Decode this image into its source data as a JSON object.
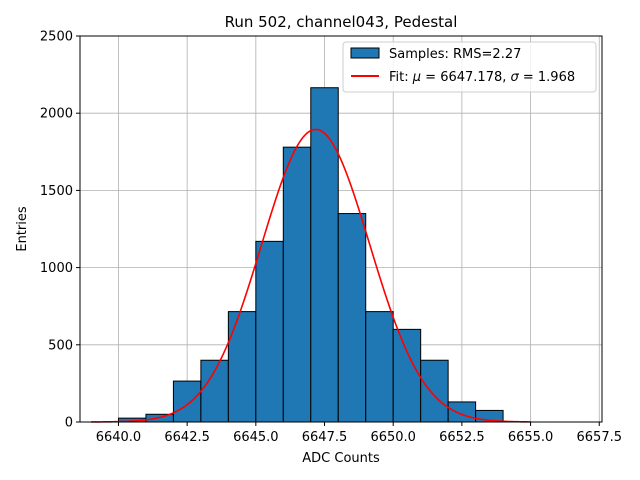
{
  "chart_data": {
    "type": "bar",
    "title": "Run 502, channel043, Pedestal",
    "xlabel": "ADC Counts",
    "ylabel": "Entries",
    "xlim": [
      6638.6,
      6657.6
    ],
    "ylim": [
      0,
      2500
    ],
    "xticks": [
      "6640.0",
      "6642.5",
      "6645.0",
      "6647.5",
      "6650.0",
      "6652.5",
      "6655.0",
      "6657.5"
    ],
    "yticks": [
      "0",
      "500",
      "1000",
      "1500",
      "2000",
      "2500"
    ],
    "grid": true,
    "legend_position": "top-right",
    "histogram": {
      "name": "Samples: RMS=2.27",
      "color": "#1f77b4",
      "edge_color": "#000000",
      "bins": [
        {
          "x0": 6640,
          "x1": 6641,
          "count": 25
        },
        {
          "x0": 6641,
          "x1": 6642,
          "count": 50
        },
        {
          "x0": 6642,
          "x1": 6643,
          "count": 265
        },
        {
          "x0": 6643,
          "x1": 6644,
          "count": 400
        },
        {
          "x0": 6644,
          "x1": 6645,
          "count": 715
        },
        {
          "x0": 6645,
          "x1": 6646,
          "count": 1170
        },
        {
          "x0": 6646,
          "x1": 6647,
          "count": 1780
        },
        {
          "x0": 6647,
          "x1": 6648,
          "count": 2165
        },
        {
          "x0": 6648,
          "x1": 6649,
          "count": 1350
        },
        {
          "x0": 6649,
          "x1": 6650,
          "count": 715
        },
        {
          "x0": 6650,
          "x1": 6651,
          "count": 600
        },
        {
          "x0": 6651,
          "x1": 6652,
          "count": 400
        },
        {
          "x0": 6652,
          "x1": 6653,
          "count": 130
        },
        {
          "x0": 6653,
          "x1": 6654,
          "count": 75
        }
      ]
    },
    "fit": {
      "name": "Fit: μ = 6647.178, σ = 1.968",
      "legend_parts": [
        "Fit: ",
        "μ",
        " = 6647.178, ",
        "σ",
        " = 1.968"
      ],
      "color": "#ff0000",
      "mu": 6647.178,
      "sigma": 1.968,
      "amplitude": 1895,
      "x_range": [
        6639,
        6655
      ]
    }
  }
}
